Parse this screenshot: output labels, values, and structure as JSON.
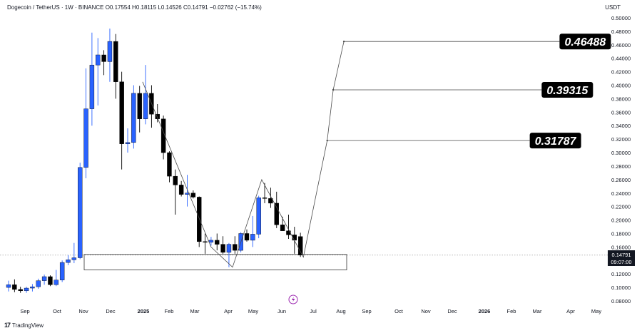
{
  "header": {
    "title": "Dogecoin / TetherUS · 1W · BINANCE",
    "ohlc": "O0.17554  H0.18115  L0.14526  C0.14791  −0.02762 (−15.74%)",
    "currency": "USDT"
  },
  "footer": {
    "brand": "TradingView"
  },
  "price_tag": {
    "price": "0.14791",
    "countdown": "09:07:00"
  },
  "chart_data": {
    "type": "candlestick",
    "y_axis": {
      "ylim": [
        0.07,
        0.51
      ],
      "ticks": [
        "0.08000",
        "0.10000",
        "0.12000",
        "0.14000",
        "0.16000",
        "0.18000",
        "0.20000",
        "0.22000",
        "0.24000",
        "0.26000",
        "0.28000",
        "0.30000",
        "0.32000",
        "0.34000",
        "0.36000",
        "0.38000",
        "0.40000",
        "0.42000",
        "0.44000",
        "0.46000",
        "0.48000",
        "0.50000"
      ]
    },
    "x_axis": {
      "labels": [
        "Sep",
        "Oct",
        "Nov",
        "Dec",
        "2025",
        "Feb",
        "Mar",
        "Apr",
        "May",
        "Jun",
        "Jul",
        "Aug",
        "Sep",
        "Oct",
        "Nov",
        "Dec",
        "2026",
        "Feb",
        "Mar",
        "Apr",
        "May"
      ],
      "bold": [
        "2025",
        "2026"
      ]
    },
    "candles": [
      {
        "o": 0.1,
        "h": 0.11,
        "l": 0.094,
        "c": 0.104
      },
      {
        "o": 0.104,
        "h": 0.112,
        "l": 0.093,
        "c": 0.097
      },
      {
        "o": 0.097,
        "h": 0.101,
        "l": 0.092,
        "c": 0.095
      },
      {
        "o": 0.095,
        "h": 0.101,
        "l": 0.092,
        "c": 0.099
      },
      {
        "o": 0.099,
        "h": 0.105,
        "l": 0.094,
        "c": 0.101
      },
      {
        "o": 0.101,
        "h": 0.113,
        "l": 0.098,
        "c": 0.11
      },
      {
        "o": 0.11,
        "h": 0.119,
        "l": 0.104,
        "c": 0.116
      },
      {
        "o": 0.116,
        "h": 0.118,
        "l": 0.102,
        "c": 0.104
      },
      {
        "o": 0.104,
        "h": 0.126,
        "l": 0.102,
        "c": 0.111
      },
      {
        "o": 0.111,
        "h": 0.14,
        "l": 0.108,
        "c": 0.137
      },
      {
        "o": 0.137,
        "h": 0.148,
        "l": 0.133,
        "c": 0.141
      },
      {
        "o": 0.141,
        "h": 0.166,
        "l": 0.136,
        "c": 0.144
      },
      {
        "o": 0.144,
        "h": 0.285,
        "l": 0.142,
        "c": 0.278
      },
      {
        "o": 0.278,
        "h": 0.425,
        "l": 0.262,
        "c": 0.365
      },
      {
        "o": 0.365,
        "h": 0.478,
        "l": 0.34,
        "c": 0.43
      },
      {
        "o": 0.43,
        "h": 0.47,
        "l": 0.37,
        "c": 0.445
      },
      {
        "o": 0.445,
        "h": 0.452,
        "l": 0.415,
        "c": 0.435
      },
      {
        "o": 0.435,
        "h": 0.484,
        "l": 0.405,
        "c": 0.465
      },
      {
        "o": 0.465,
        "h": 0.476,
        "l": 0.38,
        "c": 0.405
      },
      {
        "o": 0.405,
        "h": 0.42,
        "l": 0.275,
        "c": 0.313
      },
      {
        "o": 0.313,
        "h": 0.336,
        "l": 0.3,
        "c": 0.315
      },
      {
        "o": 0.315,
        "h": 0.4,
        "l": 0.306,
        "c": 0.388
      },
      {
        "o": 0.388,
        "h": 0.399,
        "l": 0.33,
        "c": 0.35
      },
      {
        "o": 0.35,
        "h": 0.43,
        "l": 0.342,
        "c": 0.388
      },
      {
        "o": 0.388,
        "h": 0.4,
        "l": 0.337,
        "c": 0.357
      },
      {
        "o": 0.357,
        "h": 0.372,
        "l": 0.345,
        "c": 0.35
      },
      {
        "o": 0.35,
        "h": 0.355,
        "l": 0.29,
        "c": 0.3
      },
      {
        "o": 0.3,
        "h": 0.302,
        "l": 0.256,
        "c": 0.265
      },
      {
        "o": 0.265,
        "h": 0.275,
        "l": 0.208,
        "c": 0.252
      },
      {
        "o": 0.252,
        "h": 0.258,
        "l": 0.235,
        "c": 0.238
      },
      {
        "o": 0.238,
        "h": 0.267,
        "l": 0.22,
        "c": 0.24
      },
      {
        "o": 0.24,
        "h": 0.244,
        "l": 0.232,
        "c": 0.234
      },
      {
        "o": 0.234,
        "h": 0.235,
        "l": 0.16,
        "c": 0.168
      },
      {
        "o": 0.168,
        "h": 0.18,
        "l": 0.15,
        "c": 0.167
      },
      {
        "o": 0.167,
        "h": 0.175,
        "l": 0.162,
        "c": 0.17
      },
      {
        "o": 0.17,
        "h": 0.18,
        "l": 0.155,
        "c": 0.164
      },
      {
        "o": 0.164,
        "h": 0.176,
        "l": 0.15,
        "c": 0.152
      },
      {
        "o": 0.152,
        "h": 0.166,
        "l": 0.13,
        "c": 0.164
      },
      {
        "o": 0.164,
        "h": 0.176,
        "l": 0.15,
        "c": 0.155
      },
      {
        "o": 0.155,
        "h": 0.182,
        "l": 0.152,
        "c": 0.18
      },
      {
        "o": 0.18,
        "h": 0.186,
        "l": 0.168,
        "c": 0.17
      },
      {
        "o": 0.17,
        "h": 0.206,
        "l": 0.16,
        "c": 0.179
      },
      {
        "o": 0.179,
        "h": 0.236,
        "l": 0.173,
        "c": 0.233
      },
      {
        "o": 0.233,
        "h": 0.255,
        "l": 0.225,
        "c": 0.232
      },
      {
        "o": 0.232,
        "h": 0.248,
        "l": 0.218,
        "c": 0.225
      },
      {
        "o": 0.225,
        "h": 0.242,
        "l": 0.188,
        "c": 0.193
      },
      {
        "o": 0.193,
        "h": 0.205,
        "l": 0.185,
        "c": 0.184
      },
      {
        "o": 0.184,
        "h": 0.208,
        "l": 0.172,
        "c": 0.178
      },
      {
        "o": 0.178,
        "h": 0.19,
        "l": 0.15,
        "c": 0.17
      },
      {
        "o": 0.17554,
        "h": 0.18115,
        "l": 0.14526,
        "c": 0.14791
      }
    ],
    "support_zone": {
      "y_top": 0.149,
      "y_bottom": 0.126
    },
    "current_price_line": 0.14791,
    "pattern_path": [
      {
        "i": 22.5,
        "y": 0.405
      },
      {
        "i": 34,
        "y": 0.16
      },
      {
        "i": 37.6,
        "y": 0.13
      },
      {
        "i": 42.5,
        "y": 0.26
      },
      {
        "i": 49.5,
        "y": 0.145
      },
      {
        "i": 53.5,
        "y": 0.318
      },
      {
        "i": 54.5,
        "y": 0.393
      },
      {
        "i": 56.3,
        "y": 0.465
      }
    ],
    "targets": [
      {
        "label": "0.31787",
        "value": 0.31787,
        "start_i": 53.5,
        "box_end_i": 87.5
      },
      {
        "label": "0.39315",
        "value": 0.39315,
        "start_i": 54.5,
        "box_end_i": 89.5
      },
      {
        "label": "0.46488",
        "value": 0.46488,
        "start_i": 56.3,
        "box_end_i": 92.5
      }
    ],
    "colors": {
      "up": "#2962ff",
      "down": "#000000",
      "line": "#4a4a4a",
      "label_bg": "#000000",
      "label_text": "#ffffff"
    }
  }
}
